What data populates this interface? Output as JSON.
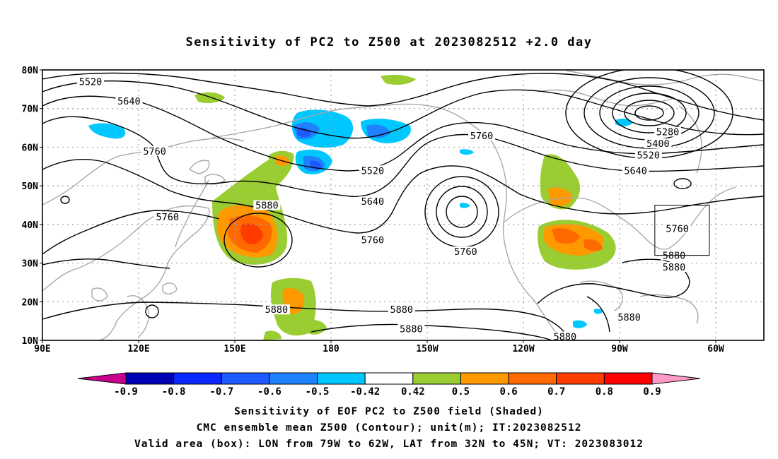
{
  "title": "Sensitivity of PC2 to Z500 at 2023082512 +2.0 day",
  "captions": {
    "line1": "Sensitivity of EOF PC2 to Z500 field (Shaded)",
    "line2": "CMC ensemble mean Z500 (Contour); unit(m); IT:2023082512",
    "line3": "Valid area (box): LON from 79W to 62W, LAT from 32N to 45N; VT: 2023083012"
  },
  "map": {
    "lat_labels": [
      "80N",
      "70N",
      "60N",
      "50N",
      "40N",
      "30N",
      "20N",
      "10N"
    ],
    "lat_values": [
      80,
      70,
      60,
      50,
      40,
      30,
      20,
      10
    ],
    "lon_labels": [
      "90E",
      "120E",
      "150E",
      "180",
      "150W",
      "120W",
      "90W",
      "60W"
    ],
    "lon_values": [
      90,
      120,
      150,
      180,
      210,
      240,
      270,
      300
    ],
    "lon_range": [
      90,
      315
    ],
    "lat_range": [
      10,
      80
    ],
    "valid_box": {
      "lon": [
        281,
        298
      ],
      "lat": [
        32,
        45
      ]
    },
    "contour_labels": [
      {
        "text": "5520",
        "lon": 105,
        "lat": 77
      },
      {
        "text": "5640",
        "lon": 117,
        "lat": 72
      },
      {
        "text": "5760",
        "lon": 125,
        "lat": 59
      },
      {
        "text": "5760",
        "lon": 129,
        "lat": 42
      },
      {
        "text": "5880",
        "lon": 160,
        "lat": 45
      },
      {
        "text": "5520",
        "lon": 193,
        "lat": 54
      },
      {
        "text": "5640",
        "lon": 193,
        "lat": 46
      },
      {
        "text": "5760",
        "lon": 193,
        "lat": 36
      },
      {
        "text": "5760",
        "lon": 227,
        "lat": 63
      },
      {
        "text": "5760",
        "lon": 222,
        "lat": 33
      },
      {
        "text": "5880",
        "lon": 163,
        "lat": 18
      },
      {
        "text": "5880",
        "lon": 202,
        "lat": 18
      },
      {
        "text": "5880",
        "lon": 205,
        "lat": 13
      },
      {
        "text": "5880",
        "lon": 253,
        "lat": 11
      },
      {
        "text": "5880",
        "lon": 273,
        "lat": 16
      },
      {
        "text": "5280",
        "lon": 285,
        "lat": 64
      },
      {
        "text": "5400",
        "lon": 282,
        "lat": 61
      },
      {
        "text": "5520",
        "lon": 279,
        "lat": 58
      },
      {
        "text": "5640",
        "lon": 275,
        "lat": 54
      },
      {
        "text": "5760",
        "lon": 288,
        "lat": 39
      },
      {
        "text": "5880",
        "lon": 287,
        "lat": 29
      },
      {
        "text": "5880",
        "lon": 287,
        "lat": 32
      }
    ]
  },
  "colorbar": {
    "labels": [
      "-0.9",
      "-0.8",
      "-0.7",
      "-0.6",
      "-0.5",
      "-0.42",
      "0.42",
      "0.5",
      "0.6",
      "0.7",
      "0.8",
      "0.9"
    ],
    "colors": [
      "#c8008c",
      "#0000b4",
      "#0a28ff",
      "#1e5aff",
      "#1e82ff",
      "#00c8ff",
      "#ffffff",
      "#9acd32",
      "#ff9900",
      "#ff6a00",
      "#ff3c00",
      "#ff0000",
      "#ff99c8"
    ]
  }
}
